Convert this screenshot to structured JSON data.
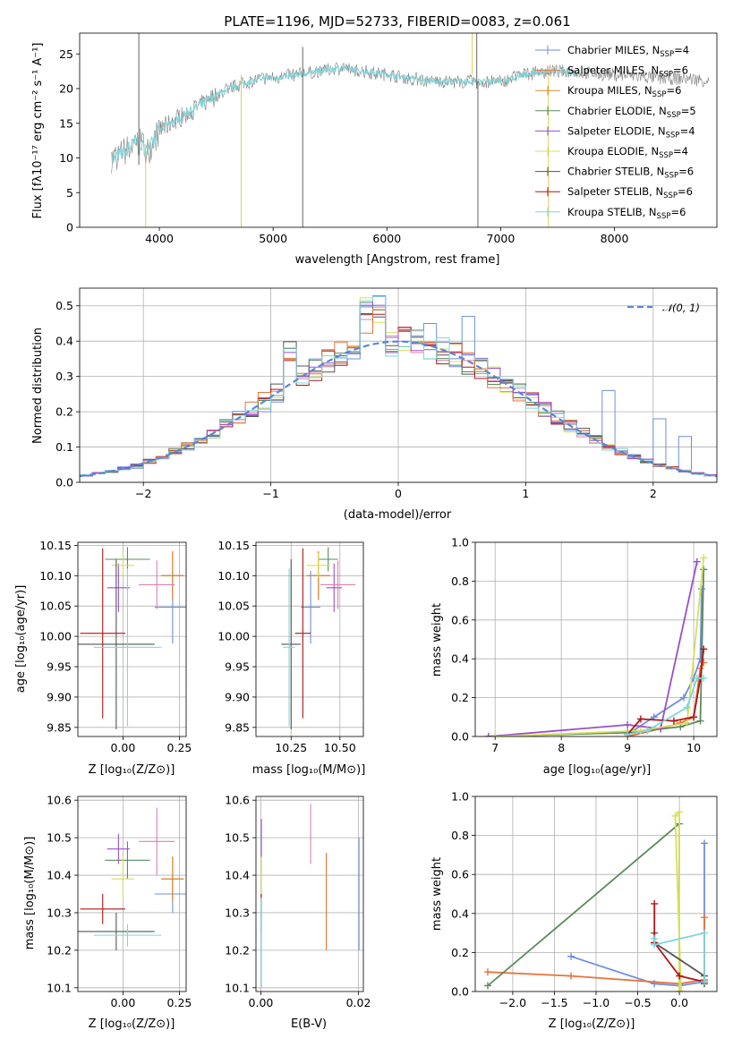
{
  "chart_data": [
    {
      "type": "line",
      "title": "PLATE=1196, MJD=52733, FIBERID=0083, z=0.061",
      "xlabel": "wavelength [Angstrom, rest frame]",
      "ylabel": "Flux [fλ10⁻¹⁷ erg cm⁻² s⁻¹ A⁻¹]",
      "xlim": [
        3300,
        8900
      ],
      "ylim": [
        0,
        28
      ],
      "xticks": [
        4000,
        5000,
        6000,
        7000,
        8000
      ],
      "yticks": [
        0,
        5,
        10,
        15,
        20,
        25
      ],
      "grid": false,
      "legend_position": "upper-right",
      "legend": [
        {
          "label": "Chabrier MILES, N",
          "sub": "SSP",
          "suffix": "=4",
          "color": "#6f8fe0"
        },
        {
          "label": "Salpeter MILES, N",
          "sub": "SSP",
          "suffix": "=6",
          "color": "#e8743b"
        },
        {
          "label": "Kroupa MILES, N",
          "sub": "SSP",
          "suffix": "=6",
          "color": "#d98a2e"
        },
        {
          "label": "Chabrier ELODIE, N",
          "sub": "SSP",
          "suffix": "=5",
          "color": "#5b8a5b"
        },
        {
          "label": "Salpeter ELODIE, N",
          "sub": "SSP",
          "suffix": "=4",
          "color": "#9b4fc9"
        },
        {
          "label": "Kroupa ELODIE, N",
          "sub": "SSP",
          "suffix": "=4",
          "color": "#d8df5a"
        },
        {
          "label": "Chabrier STELIB, N",
          "sub": "SSP",
          "suffix": "=6",
          "color": "#555555"
        },
        {
          "label": "Salpeter STELIB, N",
          "sub": "SSP",
          "suffix": "=6",
          "color": "#b01515"
        },
        {
          "label": "Kroupa STELIB, N",
          "sub": "SSP",
          "suffix": "=6",
          "color": "#7fd6dd"
        }
      ],
      "data_color": "#808080",
      "model_color": "#7fd6dd",
      "spectrum_anchors": {
        "x": [
          3600,
          3700,
          3800,
          3900,
          4000,
          4100,
          4200,
          4300,
          4400,
          4500,
          4600,
          4700,
          4800,
          4900,
          5000,
          5200,
          5400,
          5600,
          5800,
          6000,
          6200,
          6400,
          6600,
          6800,
          7000,
          7200,
          7400,
          7600,
          7800,
          8000,
          8200,
          8400,
          8600,
          8800
        ],
        "y": [
          10,
          11,
          12.5,
          11,
          14,
          15,
          16,
          17,
          18,
          19,
          20,
          20.5,
          21,
          21.5,
          21.5,
          22,
          22.5,
          23,
          22.5,
          22,
          21.5,
          21,
          21,
          21,
          21,
          22,
          22.5,
          22.5,
          22.2,
          22,
          21.8,
          21.5,
          21.5,
          21.2
        ]
      }
    },
    {
      "type": "step",
      "xlabel": "(data-model)/error",
      "ylabel": "Normed distribution",
      "xlim": [
        -2.5,
        2.5
      ],
      "ylim": [
        0,
        0.55
      ],
      "xticks": [
        -2,
        -1,
        0,
        1,
        2
      ],
      "yticks": [
        0.0,
        0.1,
        0.2,
        0.3,
        0.4,
        0.5
      ],
      "grid": true,
      "legend": [
        {
          "label": "𝒩(0, 1)",
          "color": "#5b86d6",
          "style": "dashed"
        }
      ],
      "legend_position": "upper-right",
      "bin_width": 0.1,
      "series": [
        {
          "name": "Chabrier MILES",
          "color": "#6f8fe0",
          "values": [
            0.015,
            0.025,
            0.03,
            0.035,
            0.04,
            0.045,
            0.07,
            0.08,
            0.1,
            0.12,
            0.13,
            0.14,
            0.16,
            0.18,
            0.2,
            0.22,
            0.25,
            0.27,
            0.3,
            0.32,
            0.33,
            0.35,
            0.38,
            0.4,
            0.41,
            0.43,
            0.44,
            0.45,
            0.44,
            0.43,
            0.47,
            0.43,
            0.42,
            0.41,
            0.4,
            0.38,
            0.37,
            0.35,
            0.32,
            0.3,
            0.29,
            0.26,
            0.24,
            0.22,
            0.2,
            0.18,
            0.15,
            0.13,
            0.1,
            0.09
          ]
        }
      ],
      "normal_curve": {
        "mean": 0,
        "sigma": 1
      }
    },
    {
      "type": "errorbar",
      "xlabel": "Z [log₁₀(Z/Z⊙)]",
      "ylabel": "age  [log₁₀(age/yr)]",
      "xlim": [
        -0.2,
        0.28
      ],
      "ylim": [
        9.835,
        10.155
      ],
      "xticks": [
        0.0,
        0.25
      ],
      "xtick_labels": [
        "0.00",
        "0.25"
      ],
      "yticks": [
        9.85,
        9.9,
        9.95,
        10.0,
        10.05,
        10.1,
        10.15
      ],
      "ytick_labels": [
        "9.85",
        "9.90",
        "9.95",
        "10.00",
        "10.05",
        "10.10",
        "10.15"
      ],
      "grid": true,
      "points": [
        {
          "color": "#6f8fe0",
          "x": 0.22,
          "y": 10.048,
          "xerr": 0.08,
          "yerr": 0.06
        },
        {
          "color": "#e8743b",
          "x": 0.22,
          "y": 10.1,
          "xerr": 0.05,
          "yerr": 0.04
        },
        {
          "color": "#d98a2e",
          "x": 0.22,
          "y": 10.1,
          "xerr": 0.05,
          "yerr": 0.04
        },
        {
          "color": "#5b8a5b",
          "x": 0.02,
          "y": 10.127,
          "xerr": 0.1,
          "yerr": 0.02
        },
        {
          "color": "#9b4fc9",
          "x": -0.02,
          "y": 10.08,
          "xerr": 0.05,
          "yerr": 0.04
        },
        {
          "color": "#e07fb0",
          "x": 0.15,
          "y": 10.085,
          "xerr": 0.08,
          "yerr": 0.04
        },
        {
          "color": "#d8df5a",
          "x": 0.0,
          "y": 10.117,
          "xerr": 0.05,
          "yerr": 0.02
        },
        {
          "color": "#555555",
          "x": -0.03,
          "y": 9.987,
          "xerr": 0.17,
          "yerr": 0.14
        },
        {
          "color": "#b01515",
          "x": -0.09,
          "y": 10.005,
          "xerr": 0.1,
          "yerr": 0.14
        },
        {
          "color": "#7fd6dd",
          "x": 0.02,
          "y": 9.982,
          "xerr": 0.15,
          "yerr": 0.13
        }
      ]
    },
    {
      "type": "errorbar",
      "xlabel": "mass [log₁₀(M/M⊙)]",
      "xlim": [
        10.07,
        10.62
      ],
      "ylim": [
        9.835,
        10.155
      ],
      "xticks": [
        10.25,
        10.5
      ],
      "xtick_labels": [
        "10.25",
        "10.50"
      ],
      "yticks": [
        9.85,
        9.9,
        9.95,
        10.0,
        10.05,
        10.1,
        10.15
      ],
      "ytick_labels": [
        "9.85",
        "9.90",
        "9.95",
        "10.00",
        "10.05",
        "10.10",
        "10.15"
      ],
      "grid": true,
      "points": [
        {
          "color": "#6f8fe0",
          "x": 10.35,
          "y": 10.048,
          "xerr": 0.05,
          "yerr": 0.06
        },
        {
          "color": "#e8743b",
          "x": 10.39,
          "y": 10.1,
          "xerr": 0.06,
          "yerr": 0.04
        },
        {
          "color": "#d98a2e",
          "x": 10.39,
          "y": 10.1,
          "xerr": 0.06,
          "yerr": 0.04
        },
        {
          "color": "#5b8a5b",
          "x": 10.44,
          "y": 10.127,
          "xerr": 0.05,
          "yerr": 0.02
        },
        {
          "color": "#9b4fc9",
          "x": 10.47,
          "y": 10.08,
          "xerr": 0.04,
          "yerr": 0.04
        },
        {
          "color": "#e07fb0",
          "x": 10.49,
          "y": 10.085,
          "xerr": 0.09,
          "yerr": 0.04
        },
        {
          "color": "#d8df5a",
          "x": 10.39,
          "y": 10.117,
          "xerr": 0.06,
          "yerr": 0.02
        },
        {
          "color": "#555555",
          "x": 10.25,
          "y": 9.987,
          "xerr": 0.05,
          "yerr": 0.14
        },
        {
          "color": "#b01515",
          "x": 10.31,
          "y": 10.005,
          "xerr": 0.04,
          "yerr": 0.14
        },
        {
          "color": "#7fd6dd",
          "x": 10.24,
          "y": 9.982,
          "xerr": 0.03,
          "yerr": 0.13
        }
      ]
    },
    {
      "type": "line",
      "xlabel": "age  [log₁₀(age/yr)]",
      "ylabel": "mass weight",
      "xlim": [
        6.7,
        10.35
      ],
      "ylim": [
        0,
        1
      ],
      "xticks": [
        7,
        8,
        9,
        10
      ],
      "yticks": [
        0.0,
        0.2,
        0.4,
        0.6,
        0.8,
        1.0
      ],
      "grid": true,
      "series": [
        {
          "name": "Chabrier MILES",
          "color": "#6f8fe0",
          "x": [
            9.0,
            9.4,
            9.85,
            10.0,
            10.1,
            10.12
          ],
          "y": [
            0.01,
            0.1,
            0.2,
            0.3,
            0.4,
            0.76
          ]
        },
        {
          "name": "Salpeter MILES",
          "color": "#e8743b",
          "x": [
            9.0,
            9.5,
            9.8,
            10.0,
            10.1,
            10.15
          ],
          "y": [
            0.0,
            0.04,
            0.07,
            0.1,
            0.35,
            0.38
          ]
        },
        {
          "name": "Chabrier ELODIE",
          "color": "#5b8a5b",
          "x": [
            6.9,
            9.0,
            9.8,
            10.1,
            10.15
          ],
          "y": [
            0.0,
            0.02,
            0.05,
            0.08,
            0.86
          ]
        },
        {
          "name": "Salpeter ELODIE",
          "color": "#9b4fc9",
          "x": [
            6.9,
            9.0,
            9.5,
            10.05
          ],
          "y": [
            0.0,
            0.06,
            0.04,
            0.9
          ]
        },
        {
          "name": "Kroupa ELODIE",
          "color": "#d8df5a",
          "x": [
            7.0,
            9.2,
            9.9,
            10.15
          ],
          "y": [
            0.0,
            0.03,
            0.07,
            0.92
          ]
        },
        {
          "name": "Salpeter STELIB",
          "color": "#b01515",
          "x": [
            9.0,
            9.2,
            9.7,
            10.0,
            10.1,
            10.15
          ],
          "y": [
            0.01,
            0.09,
            0.08,
            0.1,
            0.3,
            0.45
          ]
        },
        {
          "name": "Kroupa STELIB",
          "color": "#7fd6dd",
          "x": [
            9.0,
            9.3,
            9.9,
            10.05,
            10.15
          ],
          "y": [
            0.01,
            0.03,
            0.15,
            0.3,
            0.3
          ]
        }
      ]
    },
    {
      "type": "errorbar",
      "xlabel": "Z [log₁₀(Z/Z⊙)]",
      "ylabel": "mass [log₁₀(M/M⊙)]",
      "xlim": [
        -0.2,
        0.28
      ],
      "ylim": [
        10.09,
        10.61
      ],
      "xticks": [
        0.0,
        0.25
      ],
      "xtick_labels": [
        "0.00",
        "0.25"
      ],
      "yticks": [
        10.1,
        10.2,
        10.3,
        10.4,
        10.5,
        10.6
      ],
      "ytick_labels": [
        "10.1",
        "10.2",
        "10.3",
        "10.4",
        "10.5",
        "10.6"
      ],
      "grid": true,
      "points": [
        {
          "color": "#6f8fe0",
          "x": 0.22,
          "y": 10.35,
          "xerr": 0.08,
          "yerr": 0.05
        },
        {
          "color": "#e8743b",
          "x": 0.22,
          "y": 10.39,
          "xerr": 0.05,
          "yerr": 0.06
        },
        {
          "color": "#d98a2e",
          "x": 0.22,
          "y": 10.39,
          "xerr": 0.05,
          "yerr": 0.06
        },
        {
          "color": "#5b8a5b",
          "x": 0.02,
          "y": 10.44,
          "xerr": 0.1,
          "yerr": 0.05
        },
        {
          "color": "#9b4fc9",
          "x": -0.02,
          "y": 10.47,
          "xerr": 0.05,
          "yerr": 0.04
        },
        {
          "color": "#e07fb0",
          "x": 0.15,
          "y": 10.49,
          "xerr": 0.08,
          "yerr": 0.09
        },
        {
          "color": "#d8df5a",
          "x": 0.0,
          "y": 10.39,
          "xerr": 0.05,
          "yerr": 0.06
        },
        {
          "color": "#555555",
          "x": -0.03,
          "y": 10.25,
          "xerr": 0.17,
          "yerr": 0.05
        },
        {
          "color": "#b01515",
          "x": -0.09,
          "y": 10.31,
          "xerr": 0.1,
          "yerr": 0.04
        },
        {
          "color": "#7fd6dd",
          "x": 0.02,
          "y": 10.24,
          "xerr": 0.15,
          "yerr": 0.03
        }
      ]
    },
    {
      "type": "errorbar",
      "xlabel": "E(B-V)",
      "xlim": [
        -0.001,
        0.021
      ],
      "ylim": [
        10.09,
        10.61
      ],
      "xticks": [
        0.0,
        0.02
      ],
      "xtick_labels": [
        "0.00",
        "0.02"
      ],
      "yticks": [
        10.1,
        10.2,
        10.3,
        10.4,
        10.5,
        10.6
      ],
      "ytick_labels": [
        "10.1",
        "10.2",
        "10.3",
        "10.4",
        "10.5",
        "10.6"
      ],
      "grid": true,
      "points": [
        {
          "color": "#6f8fe0",
          "x": 0.0201,
          "y": 10.35,
          "yerr": 0.15
        },
        {
          "color": "#e8743b",
          "x": 0.0134,
          "y": 10.33,
          "yerr": 0.13
        },
        {
          "color": "#e07fb0",
          "x": 0.0102,
          "y": 10.51,
          "yerr": 0.08
        },
        {
          "color": "#9b4fc9",
          "x": 0.0001,
          "y": 10.48,
          "yerr": 0.07
        },
        {
          "color": "#d8df5a",
          "x": 0.0001,
          "y": 10.39,
          "yerr": 0.06
        },
        {
          "color": "#b01515",
          "x": 0.0001,
          "y": 10.3,
          "yerr": 0.05
        },
        {
          "color": "#7fd6dd",
          "x": 0.0001,
          "y": 10.22,
          "yerr": 0.12
        }
      ]
    },
    {
      "type": "line",
      "xlabel": "Z [log₁₀(Z/Z⊙)]",
      "ylabel": "mass weight",
      "xlim": [
        -2.45,
        0.45
      ],
      "ylim": [
        0,
        1
      ],
      "xticks": [
        -2.0,
        -1.5,
        -1.0,
        -0.5,
        0.0
      ],
      "xtick_labels": [
        "−2.0",
        "−1.5",
        "−1.0",
        "−0.5",
        "0.0"
      ],
      "yticks": [
        0.0,
        0.2,
        0.4,
        0.6,
        0.8,
        1.0
      ],
      "grid": true,
      "series": [
        {
          "name": "Chabrier MILES",
          "color": "#6f8fe0",
          "x": [
            -1.3,
            -0.3,
            0.0,
            0.3,
            0.3
          ],
          "y": [
            0.18,
            0.04,
            0.03,
            0.05,
            0.76
          ]
        },
        {
          "name": "Salpeter MILES",
          "color": "#e8743b",
          "x": [
            -2.3,
            -1.3,
            0.0,
            0.3,
            0.3
          ],
          "y": [
            0.1,
            0.08,
            0.04,
            0.06,
            0.38
          ]
        },
        {
          "name": "Chabrier ELODIE",
          "color": "#5b8a5b",
          "x": [
            -2.3,
            0.0,
            0.0
          ],
          "y": [
            0.03,
            0.86,
            0.0
          ]
        },
        {
          "name": "Kroupa ELODIE",
          "color": "#d8df5a",
          "x": [
            0.0,
            0.0,
            -0.05,
            0.02
          ],
          "y": [
            0.0,
            0.92,
            0.9,
            0.0
          ]
        },
        {
          "name": "Chabrier STELIB",
          "color": "#555555",
          "x": [
            -0.3,
            -0.3,
            0.3,
            0.3
          ],
          "y": [
            0.3,
            0.25,
            0.08,
            0.04
          ]
        },
        {
          "name": "Salpeter STELIB",
          "color": "#b01515",
          "x": [
            -0.3,
            -0.3,
            0.0,
            0.3
          ],
          "y": [
            0.45,
            0.25,
            0.08,
            0.05
          ]
        },
        {
          "name": "Kroupa STELIB",
          "color": "#7fd6dd",
          "x": [
            -0.3,
            -0.3,
            0.3,
            0.3
          ],
          "y": [
            0.27,
            0.24,
            0.3,
            0.05
          ]
        }
      ]
    }
  ]
}
